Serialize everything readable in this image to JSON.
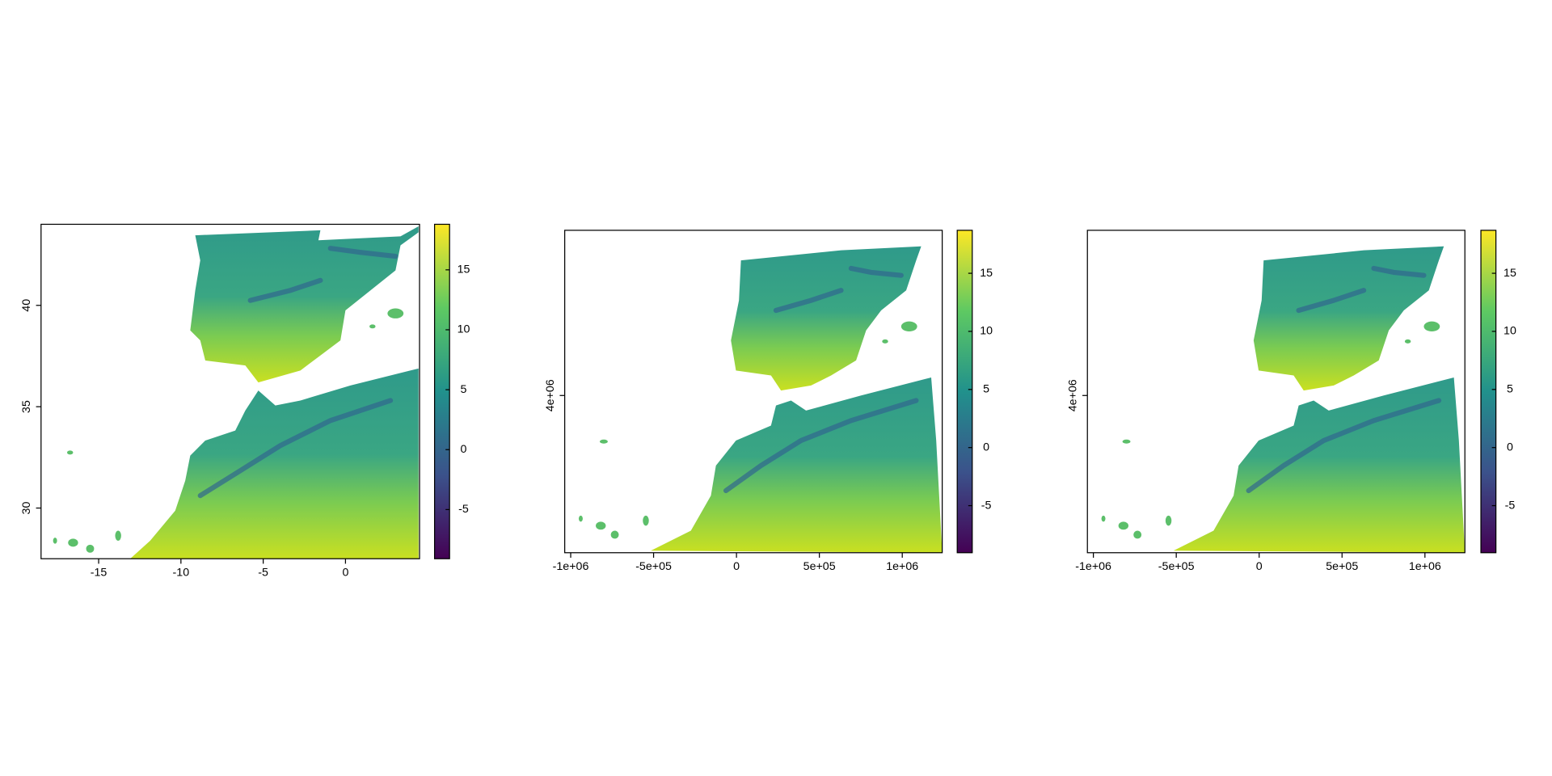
{
  "chart_data": [
    {
      "type": "raster",
      "xlim": [
        -18.5,
        4.5
      ],
      "ylim": [
        27.5,
        44
      ],
      "xticks": [
        -15,
        -10,
        -5,
        0
      ],
      "yticks": [
        30,
        35,
        40
      ],
      "legend": {
        "lim": [
          -9.1,
          18.8
        ],
        "ticks": [
          -5,
          0,
          5,
          10,
          15
        ]
      },
      "palette": [
        "#440154",
        "#3b528b",
        "#21918c",
        "#5ec962",
        "#fde725"
      ]
    },
    {
      "type": "raster",
      "xlim": [
        -1036000,
        1241000
      ],
      "ylim": [
        3054000,
        4994000
      ],
      "xticks": [
        {
          "value": -1000000,
          "label": "-1e+06"
        },
        {
          "value": -500000,
          "label": "-5e+05"
        },
        0,
        {
          "value": 500000,
          "label": "5e+05"
        },
        {
          "value": 1000000,
          "label": "1e+06"
        }
      ],
      "yticks": [
        {
          "value": 4000000,
          "label": "4e+06"
        }
      ],
      "legend": {
        "lim": [
          -9.05,
          18.7
        ],
        "ticks": [
          -5,
          0,
          5,
          10,
          15
        ]
      },
      "palette": [
        "#440154",
        "#3b528b",
        "#21918c",
        "#5ec962",
        "#fde725"
      ]
    },
    {
      "type": "raster",
      "xlim": [
        -1036000,
        1241000
      ],
      "ylim": [
        3054000,
        4994000
      ],
      "xticks": [
        {
          "value": -1000000,
          "label": "-1e+06"
        },
        {
          "value": -500000,
          "label": "-5e+05"
        },
        0,
        {
          "value": 500000,
          "label": "5e+05"
        },
        {
          "value": 1000000,
          "label": "1e+06"
        }
      ],
      "yticks": [
        {
          "value": 4000000,
          "label": "4e+06"
        }
      ],
      "legend": {
        "lim": [
          -9.05,
          18.7
        ],
        "ticks": [
          -5,
          0,
          5,
          10,
          15
        ]
      },
      "palette": [
        "#440154",
        "#3b528b",
        "#21918c",
        "#5ec962",
        "#fde725"
      ]
    }
  ]
}
